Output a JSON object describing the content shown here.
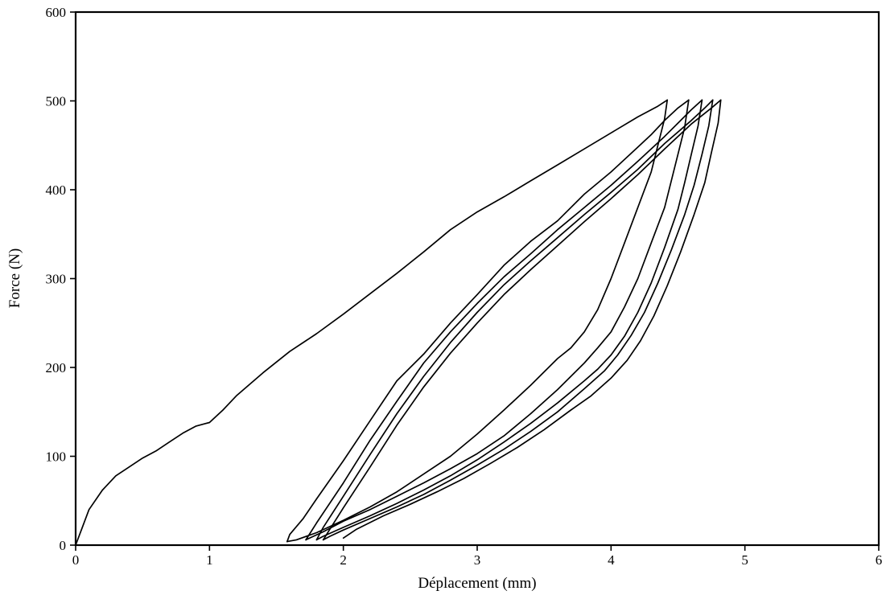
{
  "chart_data": {
    "type": "line",
    "title": "",
    "xlabel": "Déplacement  (mm)",
    "ylabel": "Force  (N)",
    "xlim": [
      0,
      6
    ],
    "ylim": [
      0,
      600
    ],
    "xticks": [
      0,
      1,
      2,
      3,
      4,
      5,
      6
    ],
    "yticks": [
      0,
      100,
      200,
      300,
      400,
      500,
      600
    ],
    "xtick_labels": [
      "0",
      "1",
      "2",
      "3",
      "4",
      "5",
      "6"
    ],
    "ytick_labels": [
      "0",
      "100",
      "200",
      "300",
      "400",
      "500",
      "600"
    ],
    "grid": false,
    "legend": "none",
    "series": [
      {
        "x": [
          0,
          0.05,
          0.1,
          0.2,
          0.3,
          0.4,
          0.5,
          0.6,
          0.7,
          0.8,
          0.9,
          1.0,
          1.1,
          1.2,
          1.4,
          1.6,
          1.8,
          2.0,
          2.2,
          2.4,
          2.6,
          2.8,
          3.0,
          3.2,
          3.4,
          3.6,
          3.8,
          4.0,
          4.2,
          4.35,
          4.42
        ],
        "y": [
          0,
          20,
          40,
          62,
          78,
          88,
          98,
          106,
          116,
          126,
          134,
          138,
          152,
          168,
          194,
          218,
          238,
          260,
          283,
          306,
          330,
          355,
          375,
          392,
          410,
          428,
          446,
          464,
          482,
          494,
          501
        ]
      },
      {
        "x": [
          4.42,
          4.4,
          4.35,
          4.3,
          4.2,
          4.1,
          4.0,
          3.9,
          3.8,
          3.7,
          3.6,
          3.4,
          3.2,
          3.0,
          2.8,
          2.6,
          2.4,
          2.2,
          2.0,
          1.8,
          1.65,
          1.58
        ],
        "y": [
          501,
          480,
          450,
          420,
          380,
          340,
          300,
          265,
          240,
          222,
          210,
          180,
          152,
          125,
          100,
          80,
          60,
          43,
          28,
          14,
          6,
          4
        ]
      },
      {
        "x": [
          1.58,
          1.6,
          1.7,
          1.8,
          2.0,
          2.2,
          2.4,
          2.6,
          2.8,
          3.0,
          3.2,
          3.4,
          3.6,
          3.8,
          4.0,
          4.2,
          4.3,
          4.4,
          4.5,
          4.58
        ],
        "y": [
          4,
          12,
          30,
          52,
          95,
          140,
          185,
          215,
          250,
          282,
          315,
          342,
          365,
          395,
          420,
          448,
          462,
          478,
          492,
          501
        ]
      },
      {
        "x": [
          4.58,
          4.55,
          4.5,
          4.45,
          4.4,
          4.3,
          4.2,
          4.1,
          4.0,
          3.9,
          3.8,
          3.6,
          3.4,
          3.2,
          3.0,
          2.8,
          2.6,
          2.4,
          2.2,
          2.0,
          1.85,
          1.72
        ],
        "y": [
          501,
          470,
          440,
          410,
          380,
          340,
          300,
          268,
          240,
          222,
          205,
          175,
          148,
          123,
          103,
          86,
          70,
          55,
          40,
          27,
          15,
          6
        ]
      },
      {
        "x": [
          1.72,
          1.8,
          2.0,
          2.2,
          2.4,
          2.6,
          2.8,
          3.0,
          3.2,
          3.4,
          3.6,
          3.8,
          4.0,
          4.2,
          4.4,
          4.5,
          4.6,
          4.68
        ],
        "y": [
          6,
          25,
          70,
          118,
          162,
          205,
          240,
          272,
          302,
          328,
          355,
          380,
          405,
          432,
          460,
          475,
          490,
          501
        ]
      },
      {
        "x": [
          4.68,
          4.65,
          4.6,
          4.55,
          4.5,
          4.4,
          4.3,
          4.2,
          4.1,
          4.0,
          3.9,
          3.8,
          3.6,
          3.4,
          3.2,
          3.0,
          2.8,
          2.6,
          2.4,
          2.2,
          2.0,
          1.85,
          1.8
        ],
        "y": [
          501,
          472,
          440,
          408,
          378,
          335,
          295,
          262,
          235,
          214,
          198,
          185,
          160,
          137,
          116,
          96,
          78,
          62,
          47,
          33,
          20,
          10,
          6
        ]
      },
      {
        "x": [
          1.8,
          1.85,
          2.0,
          2.2,
          2.4,
          2.6,
          2.8,
          3.0,
          3.2,
          3.4,
          3.6,
          3.8,
          4.0,
          4.2,
          4.4,
          4.6,
          4.7,
          4.76
        ],
        "y": [
          6,
          20,
          55,
          102,
          148,
          190,
          228,
          262,
          293,
          320,
          346,
          372,
          397,
          423,
          452,
          478,
          492,
          501
        ]
      },
      {
        "x": [
          4.76,
          4.73,
          4.68,
          4.62,
          4.55,
          4.45,
          4.35,
          4.25,
          4.15,
          4.05,
          3.95,
          3.8,
          3.6,
          3.4,
          3.2,
          3.0,
          2.8,
          2.6,
          2.4,
          2.2,
          2.0,
          1.9,
          1.85
        ],
        "y": [
          501,
          472,
          440,
          405,
          372,
          332,
          295,
          262,
          236,
          214,
          196,
          176,
          150,
          128,
          108,
          90,
          73,
          57,
          43,
          30,
          17,
          10,
          6
        ]
      },
      {
        "x": [
          1.85,
          1.9,
          2.0,
          2.2,
          2.4,
          2.6,
          2.8,
          3.0,
          3.2,
          3.4,
          3.6,
          3.8,
          4.0,
          4.2,
          4.4,
          4.6,
          4.75,
          4.82
        ],
        "y": [
          6,
          18,
          42,
          88,
          135,
          178,
          216,
          250,
          282,
          310,
          337,
          364,
          390,
          417,
          446,
          474,
          492,
          501
        ]
      },
      {
        "x": [
          4.82,
          4.8,
          4.75,
          4.7,
          4.62,
          4.52,
          4.42,
          4.32,
          4.22,
          4.12,
          4.0,
          3.85,
          3.7,
          3.5,
          3.3,
          3.1,
          2.9,
          2.7,
          2.5,
          2.3,
          2.1,
          2.0
        ],
        "y": [
          501,
          475,
          442,
          408,
          372,
          330,
          292,
          258,
          230,
          208,
          188,
          168,
          152,
          130,
          110,
          92,
          75,
          60,
          46,
          33,
          18,
          8
        ]
      }
    ]
  }
}
